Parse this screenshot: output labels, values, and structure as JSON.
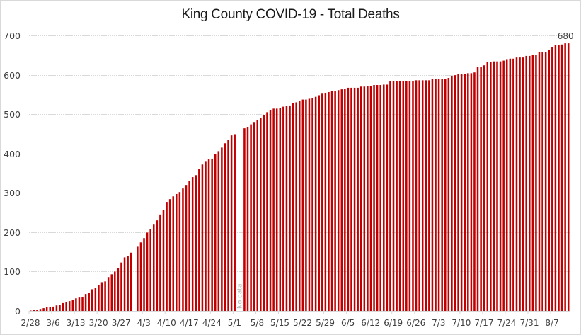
{
  "chart_data": {
    "type": "bar",
    "title": "King County COVID-19 - Total Deaths",
    "xlabel": "",
    "ylabel": "",
    "ylim": [
      0,
      700
    ],
    "yticks": [
      0,
      100,
      200,
      300,
      400,
      500,
      600,
      700
    ],
    "grid": true,
    "bar_color": "#c00000",
    "gridline_color": "#d9d9d9",
    "start_date": "2/28",
    "xtick_labels": [
      "2/28",
      "3/6",
      "3/13",
      "3/20",
      "3/27",
      "4/3",
      "4/10",
      "4/17",
      "4/24",
      "5/1",
      "5/8",
      "5/15",
      "5/22",
      "5/29",
      "6/5",
      "6/12",
      "6/19",
      "6/26",
      "7/3",
      "7/10",
      "7/17",
      "7/24",
      "7/31",
      "8/7"
    ],
    "xtick_interval_days": 7,
    "categories_count": 167,
    "values": [
      1,
      2,
      2,
      5,
      7,
      9,
      9,
      11,
      14,
      16,
      20,
      22,
      25,
      27,
      32,
      34,
      36,
      43,
      45,
      55,
      59,
      66,
      73,
      75,
      86,
      93,
      100,
      109,
      123,
      136,
      139,
      148,
      null,
      163,
      174,
      185,
      199,
      208,
      221,
      230,
      245,
      257,
      277,
      284,
      291,
      297,
      302,
      311,
      320,
      331,
      340,
      345,
      360,
      372,
      379,
      385,
      387,
      399,
      406,
      415,
      426,
      435,
      446,
      449,
      null,
      null,
      464,
      467,
      474,
      480,
      485,
      490,
      497,
      505,
      510,
      514,
      514,
      515,
      519,
      521,
      522,
      528,
      530,
      533,
      537,
      537,
      539,
      540,
      544,
      548,
      552,
      554,
      556,
      558,
      558,
      561,
      563,
      565,
      567,
      567,
      567,
      567,
      570,
      570,
      572,
      572,
      574,
      574,
      574,
      575,
      575,
      583,
      584,
      584,
      584,
      584,
      584,
      584,
      584,
      586,
      586,
      586,
      586,
      586,
      590,
      590,
      590,
      590,
      590,
      592,
      597,
      599,
      602,
      602,
      602,
      604,
      604,
      606,
      620,
      620,
      624,
      633,
      633,
      634,
      634,
      634,
      636,
      638,
      641,
      641,
      644,
      644,
      644,
      648,
      648,
      650,
      650,
      657,
      657,
      657,
      664,
      671,
      675,
      675,
      677,
      680,
      680
    ],
    "annotations": [
      {
        "text": "680",
        "at_index": 166
      },
      {
        "text": "No data",
        "at_index_range": [
          64,
          65
        ],
        "rotation": "vertical"
      }
    ],
    "legend": "none"
  }
}
